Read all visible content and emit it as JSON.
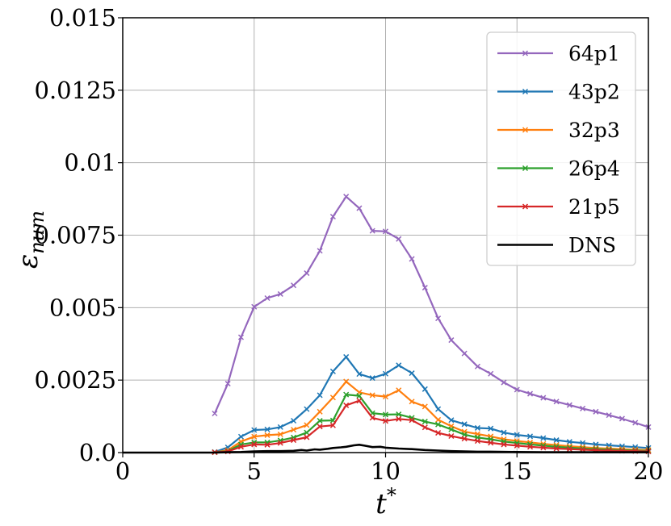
{
  "chart_data": {
    "type": "line",
    "xlabel": "t",
    "xlabel_sup": "*",
    "ylabel": "ε",
    "ylabel_sub": "num",
    "xlim": [
      0,
      20
    ],
    "ylim": [
      0,
      0.015
    ],
    "xticks": [
      0,
      5,
      10,
      15,
      20
    ],
    "xtick_labels": [
      "0",
      "5",
      "10",
      "15",
      "20"
    ],
    "yticks": [
      0,
      0.0025,
      0.005,
      0.0075,
      0.01,
      0.0125,
      0.015
    ],
    "ytick_labels": [
      "0.0",
      "0.0025",
      "0.005",
      "0.0075",
      "0.01",
      "0.0125",
      "0.015"
    ],
    "grid": true,
    "legend_position": "top-right",
    "series": [
      {
        "name": "64p1",
        "color": "#9467bd",
        "marker": "x",
        "x": [
          3.5,
          4,
          4.5,
          5,
          5.5,
          6,
          6.5,
          7,
          7.5,
          8,
          8.5,
          9,
          9.5,
          10,
          10.5,
          11,
          11.5,
          12,
          12.5,
          13,
          13.5,
          14,
          14.5,
          15,
          15.5,
          16,
          16.5,
          17,
          17.5,
          18,
          18.5,
          19,
          19.5,
          20
        ],
        "y": [
          0.00135,
          0.00238,
          0.00398,
          0.00503,
          0.00533,
          0.00547,
          0.00577,
          0.00619,
          0.00696,
          0.00814,
          0.00883,
          0.00843,
          0.00765,
          0.00763,
          0.00737,
          0.00668,
          0.00569,
          0.00463,
          0.00388,
          0.00342,
          0.00297,
          0.00272,
          0.00242,
          0.00217,
          0.00203,
          0.00189,
          0.00176,
          0.00164,
          0.00152,
          0.00141,
          0.00129,
          0.00117,
          0.00103,
          0.00088
        ]
      },
      {
        "name": "43p2",
        "color": "#1f77b4",
        "marker": "x",
        "x": [
          3.5,
          4,
          4.5,
          5,
          5.5,
          6,
          6.5,
          7,
          7.5,
          8,
          8.5,
          9,
          9.5,
          10,
          10.5,
          11,
          11.5,
          12,
          12.5,
          13,
          13.5,
          14,
          14.5,
          15,
          15.5,
          16,
          16.5,
          17,
          17.5,
          18,
          18.5,
          19,
          19.5,
          20
        ],
        "y": [
          2e-05,
          0.00018,
          0.00055,
          0.00078,
          0.0008,
          0.00088,
          0.0011,
          0.0015,
          0.00198,
          0.0028,
          0.0033,
          0.00271,
          0.00257,
          0.00272,
          0.00301,
          0.00274,
          0.00219,
          0.0015,
          0.00112,
          0.00098,
          0.00085,
          0.00083,
          0.00069,
          0.00061,
          0.00056,
          0.0005,
          0.00043,
          0.00037,
          0.00033,
          0.00028,
          0.00025,
          0.00022,
          0.00019,
          0.00016
        ]
      },
      {
        "name": "32p3",
        "color": "#ff7f0e",
        "marker": "x",
        "x": [
          3.5,
          4,
          4.5,
          5,
          5.5,
          6,
          6.5,
          7,
          7.5,
          8,
          8.5,
          9,
          9.5,
          10,
          10.5,
          11,
          11.5,
          12,
          12.5,
          13,
          13.5,
          14,
          14.5,
          15,
          15.5,
          16,
          16.5,
          17,
          17.5,
          18,
          18.5,
          19,
          19.5,
          20
        ],
        "y": [
          1e-05,
          8e-05,
          0.00038,
          0.00055,
          0.0006,
          0.00063,
          0.00079,
          0.00095,
          0.00141,
          0.0019,
          0.00245,
          0.00208,
          0.00198,
          0.00193,
          0.00215,
          0.00176,
          0.00159,
          0.00113,
          0.00091,
          0.00072,
          0.00064,
          0.00056,
          0.00046,
          0.0004,
          0.00035,
          0.0003,
          0.00026,
          0.00022,
          0.00019,
          0.00016,
          0.00014,
          0.00012,
          0.0001,
          9e-05
        ]
      },
      {
        "name": "26p4",
        "color": "#2ca02c",
        "marker": "x",
        "x": [
          3.5,
          4,
          4.5,
          5,
          5.5,
          6,
          6.5,
          7,
          7.5,
          8,
          8.5,
          9,
          9.5,
          10,
          10.5,
          11,
          11.5,
          12,
          12.5,
          13,
          13.5,
          14,
          14.5,
          15,
          15.5,
          16,
          16.5,
          17,
          17.5,
          18,
          18.5,
          19,
          19.5,
          20
        ],
        "y": [
          1e-05,
          5e-05,
          0.00028,
          0.00035,
          0.00035,
          0.00042,
          0.00052,
          0.00069,
          0.0011,
          0.00111,
          0.002,
          0.00196,
          0.00136,
          0.00131,
          0.00132,
          0.0012,
          0.00107,
          0.00097,
          0.0008,
          0.00062,
          0.00052,
          0.00046,
          0.00038,
          0.00033,
          0.00028,
          0.00024,
          0.0002,
          0.00017,
          0.00014,
          0.00012,
          0.0001,
          8e-05,
          7e-05,
          6e-05
        ]
      },
      {
        "name": "21p5",
        "color": "#d62728",
        "marker": "x",
        "x": [
          3.5,
          4,
          4.5,
          5,
          5.5,
          6,
          6.5,
          7,
          7.5,
          8,
          8.5,
          9,
          9.5,
          10,
          10.5,
          11,
          11.5,
          12,
          12.5,
          13,
          13.5,
          14,
          14.5,
          15,
          15.5,
          16,
          16.5,
          17,
          17.5,
          18,
          18.5,
          19,
          19.5,
          20
        ],
        "y": [
          1e-05,
          4e-05,
          0.0002,
          0.00028,
          0.00027,
          0.00033,
          0.00043,
          0.00053,
          0.0009,
          0.00094,
          0.00163,
          0.00179,
          0.0012,
          0.00109,
          0.00116,
          0.00112,
          0.00087,
          0.00068,
          0.00057,
          0.00048,
          0.0004,
          0.00034,
          0.00028,
          0.00024,
          0.0002,
          0.00017,
          0.00014,
          0.00012,
          0.0001,
          8e-05,
          7e-05,
          6e-05,
          5e-05,
          4e-05
        ]
      },
      {
        "name": "DNS",
        "color": "#000000",
        "marker": "none",
        "x": [
          0,
          3.5,
          4,
          4.5,
          5,
          5.5,
          6,
          6.5,
          6.8,
          7,
          7.3,
          7.5,
          7.8,
          8,
          8.3,
          8.5,
          8.8,
          9,
          9.2,
          9.5,
          9.8,
          10,
          10.5,
          11,
          11.5,
          12,
          12.5,
          13,
          13.5,
          14,
          15,
          16,
          17,
          18,
          19,
          20
        ],
        "y": [
          0,
          0,
          1e-05,
          2e-05,
          4e-05,
          5e-05,
          5e-05,
          6e-05,
          9e-05,
          7e-05,
          0.00011,
          0.0001,
          0.00013,
          0.00016,
          0.00018,
          0.0002,
          0.00025,
          0.00027,
          0.00024,
          0.00019,
          0.0002,
          0.00017,
          0.00014,
          0.00012,
          9e-05,
          7e-05,
          5e-05,
          4e-05,
          3e-05,
          3e-05,
          2e-05,
          1e-05,
          1e-05,
          1e-05,
          1e-05,
          1e-05
        ]
      }
    ]
  }
}
